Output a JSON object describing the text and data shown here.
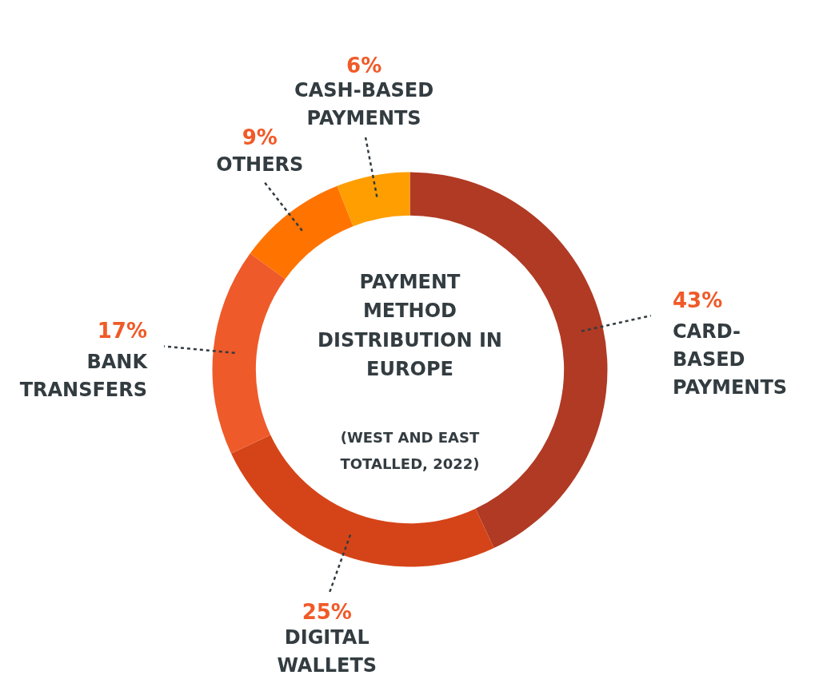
{
  "chart_data": {
    "type": "donut",
    "title": "PAYMENT\nMETHOD\nDISTRIBUTION IN\nEUROPE",
    "subtitle": "(WEST AND EAST\nTOTALLED, 2022)",
    "categories": [
      "CARD-\nBASED\nPAYMENTS",
      "DIGITAL\nWALLETS",
      "BANK\nTRANSFERS",
      "OTHERS",
      "CASH-BASED\nPAYMENTS"
    ],
    "values": [
      43,
      25,
      17,
      9,
      6
    ],
    "value_labels": [
      "43%",
      "25%",
      "17%",
      "9%",
      "6%"
    ],
    "colors": [
      "#b03a24",
      "#d54418",
      "#ef5a2a",
      "#ff7300",
      "#ff9e00"
    ]
  }
}
